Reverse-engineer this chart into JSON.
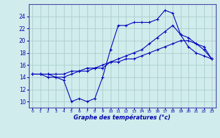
{
  "title": "Graphe des températures (°c)",
  "background_color": "#d0ecec",
  "grid_color": "#aacccc",
  "line_color": "#0000bb",
  "x_ticks": [
    0,
    1,
    2,
    3,
    4,
    5,
    6,
    7,
    8,
    9,
    10,
    11,
    12,
    13,
    14,
    15,
    16,
    17,
    18,
    19,
    20,
    21,
    22,
    23
  ],
  "y_ticks": [
    10,
    12,
    14,
    16,
    18,
    20,
    22,
    24
  ],
  "ylim": [
    9.0,
    26.0
  ],
  "xlim": [
    -0.5,
    23.5
  ],
  "series": [
    {
      "x": [
        0,
        1,
        2,
        3,
        4,
        5,
        6,
        7,
        8,
        9,
        10,
        11,
        12,
        13,
        14,
        15,
        16,
        17,
        18,
        19,
        20,
        21,
        22,
        23
      ],
      "y": [
        14.5,
        14.5,
        14.0,
        14.0,
        13.5,
        10.0,
        10.5,
        10.0,
        10.5,
        14.0,
        18.5,
        22.5,
        22.5,
        23.0,
        23.0,
        23.0,
        23.5,
        25.0,
        24.5,
        21.0,
        19.0,
        18.0,
        17.5,
        17.0
      ]
    },
    {
      "x": [
        0,
        1,
        2,
        3,
        4,
        5,
        6,
        7,
        8,
        9,
        10,
        11,
        12,
        13,
        14,
        15,
        16,
        17,
        18,
        19,
        20,
        21,
        22,
        23
      ],
      "y": [
        14.5,
        14.5,
        14.5,
        14.0,
        14.0,
        14.5,
        15.0,
        15.0,
        15.5,
        15.5,
        16.5,
        17.0,
        17.5,
        18.0,
        18.5,
        19.5,
        20.5,
        21.5,
        22.5,
        21.0,
        20.5,
        19.5,
        18.5,
        17.0
      ]
    },
    {
      "x": [
        0,
        1,
        2,
        3,
        4,
        5,
        6,
        7,
        8,
        9,
        10,
        11,
        12,
        13,
        14,
        15,
        16,
        17,
        18,
        19,
        20,
        21,
        22,
        23
      ],
      "y": [
        14.5,
        14.5,
        14.5,
        14.5,
        14.5,
        15.0,
        15.0,
        15.5,
        15.5,
        16.0,
        16.5,
        16.5,
        17.0,
        17.0,
        17.5,
        18.0,
        18.5,
        19.0,
        19.5,
        20.0,
        20.0,
        19.5,
        19.0,
        17.0
      ]
    }
  ]
}
